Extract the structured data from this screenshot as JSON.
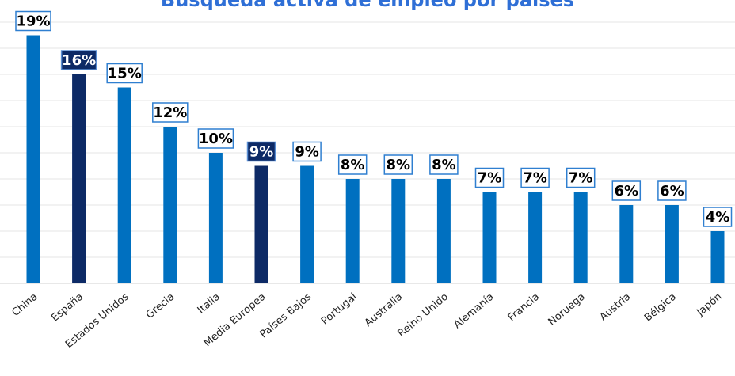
{
  "chart_data": {
    "type": "bar",
    "title": "Búsqueda activa de empleo por países",
    "categories": [
      "China",
      "España",
      "Estados Unidos",
      "Grecia",
      "Italia",
      "Media Europea",
      "Países Bajos",
      "Portugal",
      "Australia",
      "Reino Unido",
      "Alemanía",
      "Francia",
      "Noruega",
      "Austria",
      "Bélgica",
      "Japón"
    ],
    "values": [
      19,
      16,
      15,
      12,
      10,
      9,
      9,
      8,
      8,
      8,
      7,
      7,
      7,
      6,
      6,
      4
    ],
    "data_labels": [
      "19%",
      "16%",
      "15%",
      "12%",
      "10%",
      "9%",
      "9%",
      "8%",
      "8%",
      "8%",
      "7%",
      "7%",
      "7%",
      "6%",
      "6%",
      "4%"
    ],
    "highlighted": [
      "España",
      "Media Europea"
    ],
    "ylim": [
      0,
      20
    ],
    "grid": true,
    "legend": "none",
    "colors": {
      "bar": "#0070c0",
      "highlight": "#0d2a66",
      "title": "#2f6fd6",
      "label_border": "#2f7fd0"
    }
  }
}
